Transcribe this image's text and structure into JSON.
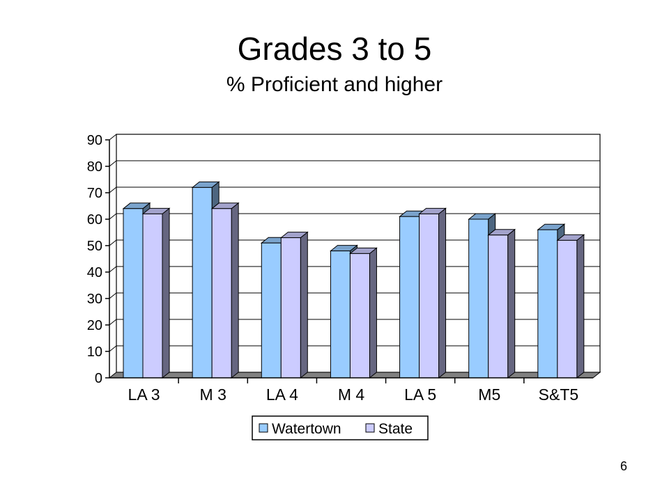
{
  "slide": {
    "title": "Grades 3 to 5",
    "subtitle": "% Proficient and higher",
    "page_number": "6"
  },
  "colors": {
    "watertown_front": "#99ccff",
    "watertown_side": "#4d6680",
    "watertown_top": "#7aa3cc",
    "state_front": "#ccccff",
    "state_side": "#666680",
    "state_top": "#a3a3cc",
    "gridline": "#000000",
    "floor": "#808080"
  },
  "chart_data": {
    "type": "bar",
    "title": "Grades 3 to 5",
    "subtitle": "% Proficient and higher",
    "categories": [
      "LA 3",
      "M 3",
      "LA 4",
      "M 4",
      "LA 5",
      "M5",
      "S&T5"
    ],
    "series": [
      {
        "name": "Watertown",
        "values": [
          64,
          72,
          51,
          48,
          61,
          60,
          56
        ]
      },
      {
        "name": "State",
        "values": [
          62,
          64,
          53,
          47,
          62,
          54,
          52
        ]
      }
    ],
    "ylim": [
      0,
      90
    ],
    "yticks": [
      "0",
      "10",
      "20",
      "30",
      "40",
      "50",
      "60",
      "70",
      "80",
      "90"
    ],
    "grid": true,
    "three_d": true,
    "legend": "bottom"
  }
}
